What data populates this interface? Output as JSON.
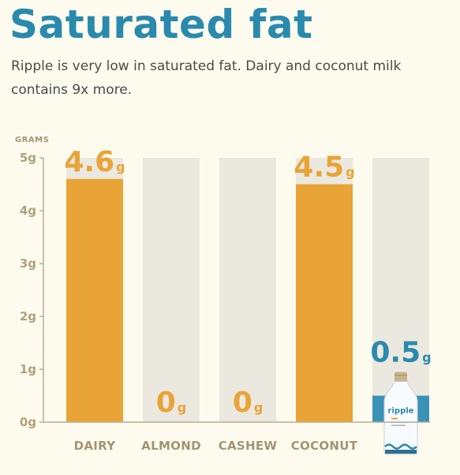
{
  "header": {
    "title": "Saturated fat",
    "subtitle": "Ripple is very low in saturated fat. Dairy and coconut milk contains 9x more."
  },
  "colors": {
    "title": "#2a8aad",
    "bar_default": "#e9a437",
    "bar_highlight": "#3b92b7",
    "track": "#ebe8df",
    "axis": "#b8ae92"
  },
  "chart_data": {
    "type": "bar",
    "ylabel": "GRAMS",
    "ylim": [
      0,
      5
    ],
    "ytick_labels": [
      "0g",
      "1g",
      "2g",
      "3g",
      "4g",
      "5g"
    ],
    "categories": [
      "DAIRY",
      "ALMOND",
      "CASHEW",
      "COCONUT",
      ""
    ],
    "values": [
      4.6,
      0,
      0,
      4.5,
      0.5
    ],
    "value_labels": [
      "4.6",
      "0",
      "0",
      "4.5",
      "0.5"
    ],
    "value_unit": "g",
    "highlight_index": 4,
    "grid": false,
    "legend": "none"
  },
  "product_image": {
    "icon": "milk-bottle-icon",
    "brand": "ripple"
  }
}
